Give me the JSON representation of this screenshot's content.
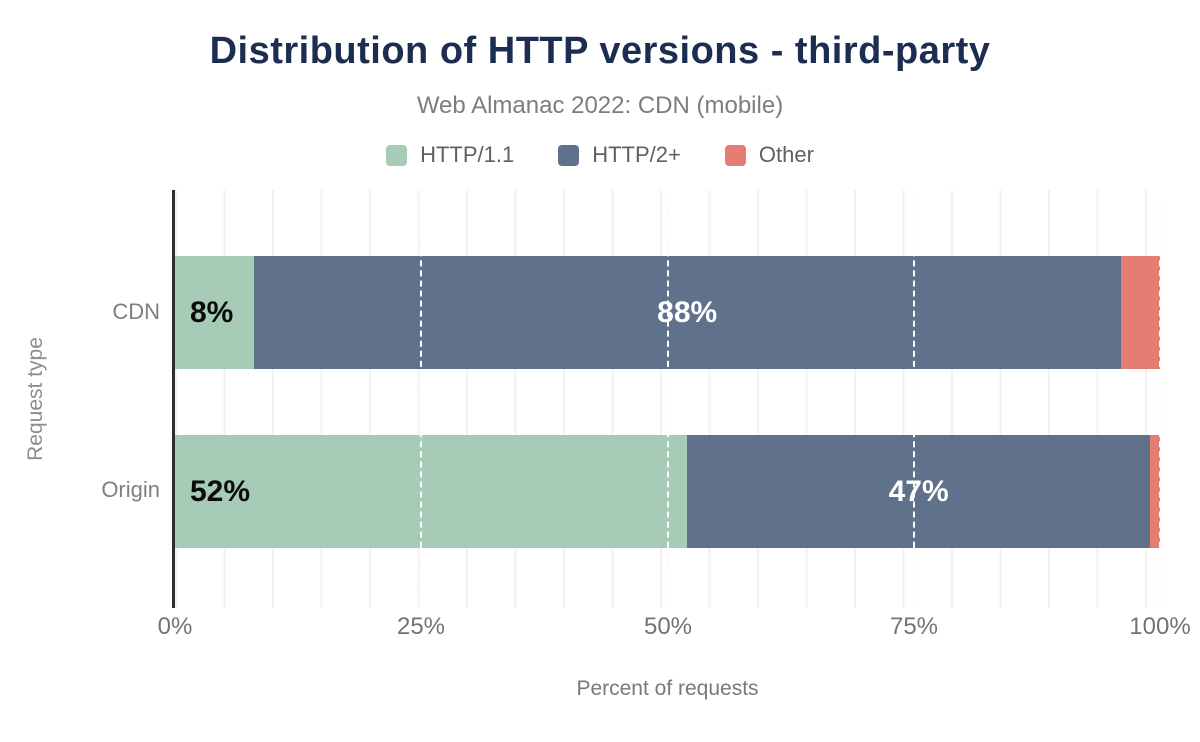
{
  "title": "Distribution of HTTP versions - third-party",
  "subtitle": "Web Almanac 2022: CDN (mobile)",
  "chart_data": {
    "type": "bar",
    "orientation": "horizontal",
    "stacked": true,
    "title": "Distribution of HTTP versions - third-party",
    "subtitle": "Web Almanac 2022: CDN (mobile)",
    "xlabel": "Percent of requests",
    "ylabel": "Request type",
    "xlim": [
      0,
      100
    ],
    "grid": "vertical, minor every 5%, major dashed every 25%",
    "legend_position": "top-center",
    "categories": [
      "CDN",
      "Origin"
    ],
    "x_ticks": [
      "0%",
      "25%",
      "50%",
      "75%",
      "100%"
    ],
    "series": [
      {
        "name": "HTTP/1.1",
        "color": "#a6ccb7",
        "values": [
          8,
          52
        ],
        "label_color": "#0b0b0b",
        "label_align": "left"
      },
      {
        "name": "HTTP/2+",
        "color": "#60718c",
        "values": [
          88,
          47
        ],
        "label_color": "#ffffff",
        "label_align": "center"
      },
      {
        "name": "Other",
        "color": "#e57d72",
        "values": [
          4,
          1
        ],
        "label_color": "#ffffff",
        "label_align": "center"
      }
    ],
    "data_labels_shown": [
      "8%",
      "88%",
      "52%",
      "47%"
    ],
    "min_label_value": 5
  },
  "colors": {
    "title": "#1d2d50",
    "subtitle_text": "#7d7d7d",
    "axis_text": "#70747a",
    "axis_line": "#2e2e2e",
    "gridline": "#f1f1f1",
    "background": "#ffffff"
  }
}
